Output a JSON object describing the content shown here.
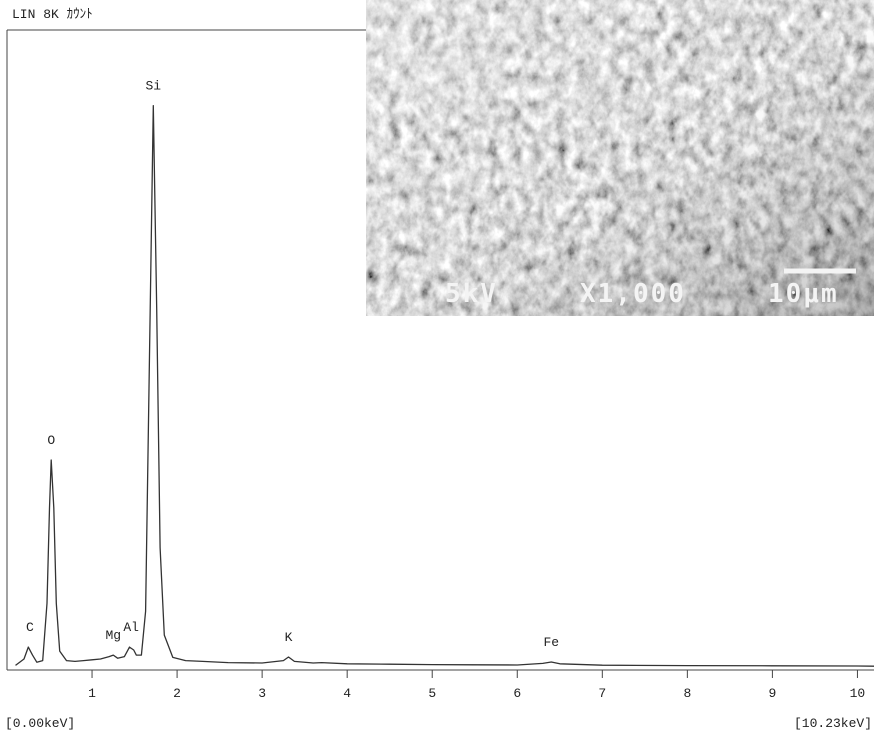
{
  "chart_data": {
    "type": "line",
    "title": "LIN   8K  ｶｳﾝﾄ",
    "xlim": [
      0,
      10.23
    ],
    "ylim": [
      0,
      8000
    ],
    "xticks": [
      1,
      2,
      3,
      4,
      5,
      6,
      7,
      8,
      9,
      10
    ],
    "range_labels": [
      "[0.00keV]",
      "[10.23keV]"
    ],
    "color": "#333333",
    "x": [
      0.1,
      0.2,
      0.25,
      0.3,
      0.35,
      0.42,
      0.47,
      0.5,
      0.52,
      0.55,
      0.58,
      0.62,
      0.7,
      0.8,
      0.9,
      1.0,
      1.1,
      1.2,
      1.25,
      1.3,
      1.38,
      1.44,
      1.49,
      1.52,
      1.58,
      1.63,
      1.67,
      1.72,
      1.76,
      1.8,
      1.85,
      1.95,
      2.1,
      2.3,
      2.6,
      3.0,
      3.25,
      3.31,
      3.38,
      3.6,
      3.7,
      4.0,
      4.5,
      5.0,
      5.5,
      6.0,
      6.3,
      6.4,
      6.5,
      7.0,
      8.0,
      9.0,
      10.0,
      10.23
    ],
    "values": [
      20,
      100,
      250,
      150,
      60,
      80,
      800,
      2000,
      2600,
      2000,
      800,
      200,
      80,
      70,
      80,
      90,
      100,
      130,
      150,
      110,
      130,
      250,
      213,
      150,
      150,
      700,
      3500,
      7050,
      4500,
      1500,
      400,
      120,
      80,
      70,
      55,
      50,
      80,
      125,
      70,
      50,
      55,
      40,
      35,
      30,
      28,
      25,
      45,
      63,
      40,
      22,
      18,
      15,
      12,
      10
    ],
    "peak_labels": [
      {
        "label": "C",
        "x": 0.27
      },
      {
        "label": "O",
        "x": 0.52
      },
      {
        "label": "Mg",
        "x": 1.25
      },
      {
        "label": "Al",
        "x": 1.46
      },
      {
        "label": "Si",
        "x": 1.72
      },
      {
        "label": "K",
        "x": 3.31
      },
      {
        "label": "Fe",
        "x": 6.4
      }
    ],
    "inset": {
      "labels": [
        "5kV",
        "X1,000",
        "10μm"
      ]
    }
  }
}
